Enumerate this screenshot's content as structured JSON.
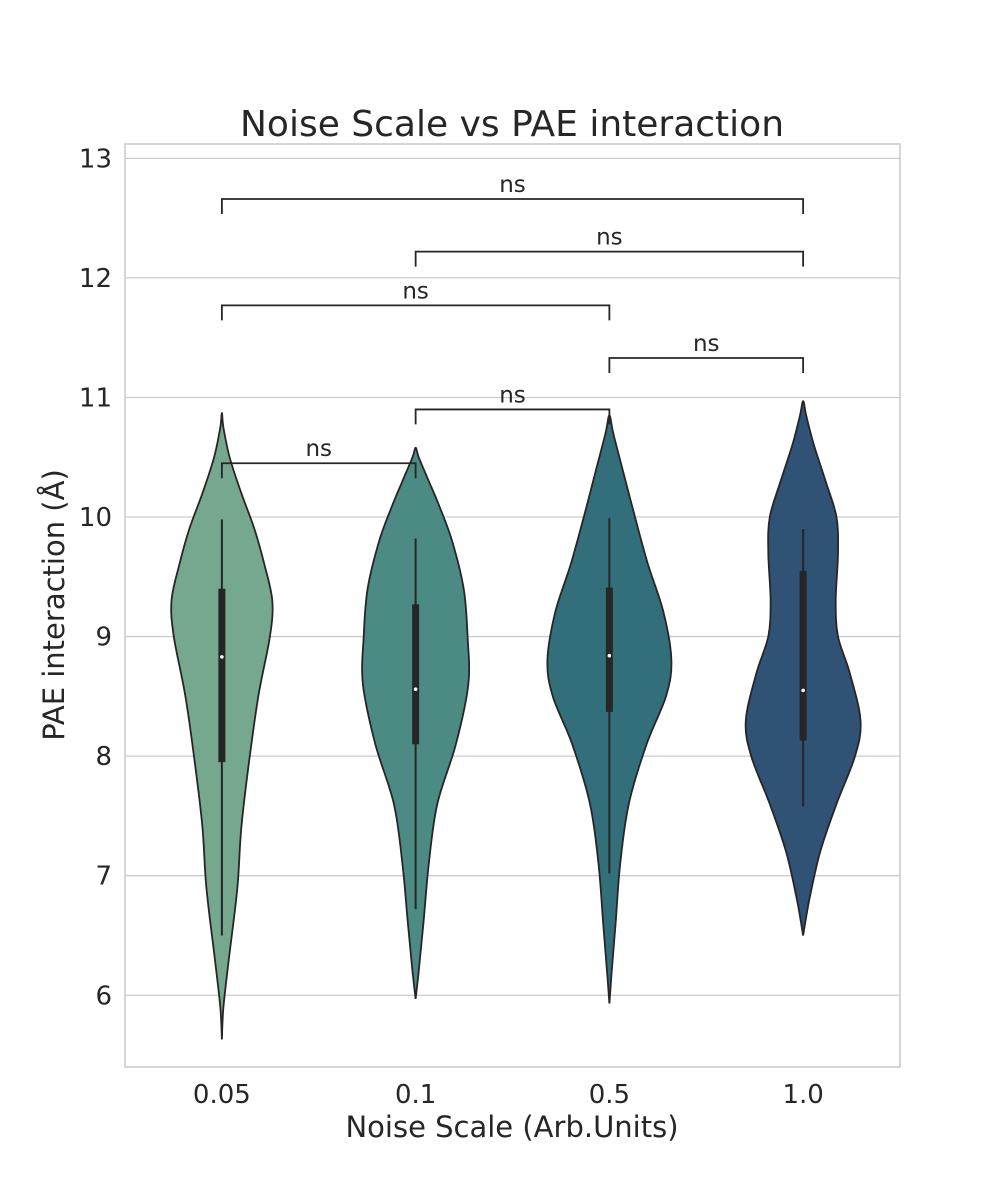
{
  "chart_data": {
    "type": "violin",
    "title": "Noise Scale vs PAE interaction",
    "xlabel": "Noise Scale (Arb.Units)",
    "ylabel": "PAE interaction (Å)",
    "ylim": [
      5.4,
      13.12
    ],
    "yticks": [
      6,
      7,
      8,
      9,
      10,
      11,
      12,
      13
    ],
    "grid": true,
    "categories": [
      "0.05",
      "0.1",
      "0.5",
      "1.0"
    ],
    "series": [
      {
        "category": "0.05",
        "color": "#76a78f",
        "min": 6.5,
        "q1": 7.95,
        "median": 8.83,
        "q3": 9.4,
        "max": 9.98,
        "density": [
          [
            5.63,
            0
          ],
          [
            5.9,
            0.02
          ],
          [
            6.3,
            0.09
          ],
          [
            6.9,
            0.2
          ],
          [
            7.4,
            0.25
          ],
          [
            7.9,
            0.34
          ],
          [
            8.5,
            0.47
          ],
          [
            9.0,
            0.62
          ],
          [
            9.3,
            0.65
          ],
          [
            9.6,
            0.55
          ],
          [
            9.9,
            0.42
          ],
          [
            10.2,
            0.25
          ],
          [
            10.5,
            0.1
          ],
          [
            10.75,
            0.02
          ],
          [
            10.87,
            0
          ]
        ]
      },
      {
        "category": "0.1",
        "color": "#4c8a84",
        "min": 6.72,
        "q1": 8.1,
        "median": 8.56,
        "q3": 9.27,
        "max": 9.82,
        "density": [
          [
            5.97,
            0
          ],
          [
            6.2,
            0.04
          ],
          [
            6.6,
            0.1
          ],
          [
            7.1,
            0.17
          ],
          [
            7.6,
            0.28
          ],
          [
            8.1,
            0.52
          ],
          [
            8.6,
            0.68
          ],
          [
            9.0,
            0.67
          ],
          [
            9.4,
            0.62
          ],
          [
            9.8,
            0.47
          ],
          [
            10.1,
            0.3
          ],
          [
            10.3,
            0.17
          ],
          [
            10.5,
            0.04
          ],
          [
            10.58,
            0
          ]
        ]
      },
      {
        "category": "0.5",
        "color": "#336f7b",
        "min": 7.02,
        "q1": 8.37,
        "median": 8.84,
        "q3": 9.41,
        "max": 9.99,
        "density": [
          [
            5.93,
            0
          ],
          [
            6.2,
            0.03
          ],
          [
            6.6,
            0.08
          ],
          [
            7.1,
            0.14
          ],
          [
            7.6,
            0.25
          ],
          [
            8.1,
            0.48
          ],
          [
            8.5,
            0.73
          ],
          [
            8.8,
            0.8
          ],
          [
            9.2,
            0.7
          ],
          [
            9.6,
            0.5
          ],
          [
            10.0,
            0.33
          ],
          [
            10.4,
            0.17
          ],
          [
            10.7,
            0.05
          ],
          [
            10.85,
            0
          ]
        ]
      },
      {
        "category": "1.0",
        "color": "#2f5275",
        "min": 7.58,
        "q1": 8.13,
        "median": 8.55,
        "q3": 9.55,
        "max": 9.9,
        "density": [
          [
            6.5,
            0
          ],
          [
            6.8,
            0.08
          ],
          [
            7.2,
            0.22
          ],
          [
            7.6,
            0.43
          ],
          [
            8.0,
            0.67
          ],
          [
            8.3,
            0.74
          ],
          [
            8.7,
            0.6
          ],
          [
            9.0,
            0.45
          ],
          [
            9.3,
            0.42
          ],
          [
            9.7,
            0.45
          ],
          [
            10.0,
            0.43
          ],
          [
            10.3,
            0.29
          ],
          [
            10.6,
            0.14
          ],
          [
            10.85,
            0.04
          ],
          [
            10.97,
            0
          ]
        ]
      }
    ],
    "annotations": [
      {
        "from": "0.05",
        "to": "0.1",
        "y": 10.45,
        "text": "ns"
      },
      {
        "from": "0.1",
        "to": "0.5",
        "y": 10.9,
        "text": "ns"
      },
      {
        "from": "0.5",
        "to": "1.0",
        "y": 11.33,
        "text": "ns"
      },
      {
        "from": "0.05",
        "to": "0.5",
        "y": 11.77,
        "text": "ns"
      },
      {
        "from": "0.1",
        "to": "1.0",
        "y": 12.22,
        "text": "ns"
      },
      {
        "from": "0.05",
        "to": "1.0",
        "y": 12.66,
        "text": "ns"
      }
    ]
  }
}
